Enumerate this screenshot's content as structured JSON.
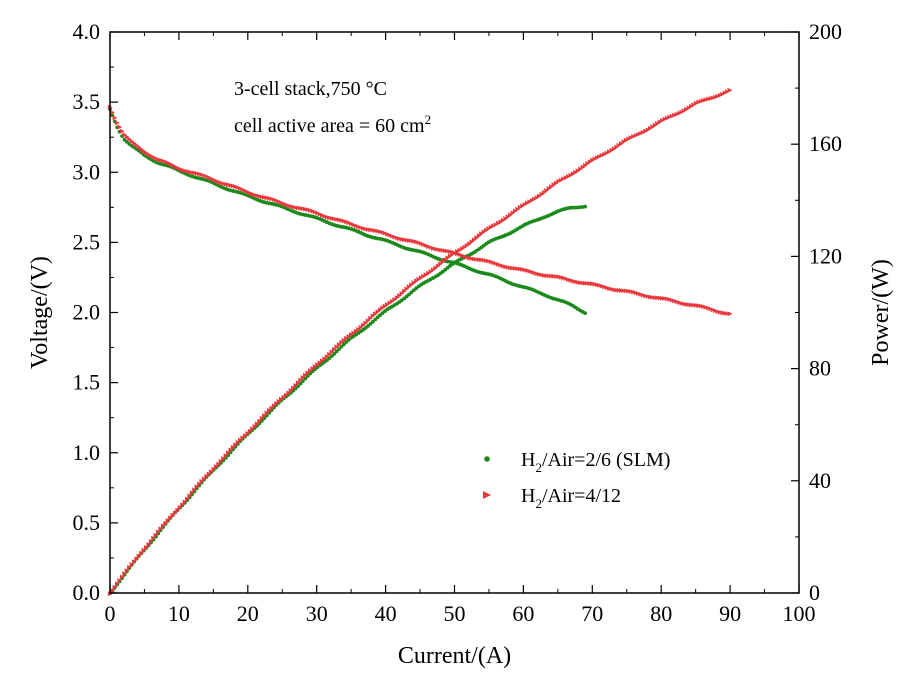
{
  "chart_data": {
    "type": "scatter",
    "xlabel": "Current/(A)",
    "ylabel_left": "Voltage/(V)",
    "ylabel_right": "Power/(W)",
    "xlim": [
      0,
      100
    ],
    "ylim_left": [
      0,
      4
    ],
    "ylim_right": [
      0,
      200
    ],
    "xticks": [
      "0",
      "10",
      "20",
      "30",
      "40",
      "50",
      "60",
      "70",
      "80",
      "90",
      "100"
    ],
    "yticks_left": [
      "0.0",
      "0.5",
      "1.0",
      "1.5",
      "2.0",
      "2.5",
      "3.0",
      "3.5",
      "4.0"
    ],
    "yticks_right": [
      "0",
      "40",
      "80",
      "120",
      "160",
      "200"
    ],
    "annotation": {
      "line1": "3-cell stack,750 °C",
      "line2_prefix": "cell active area = 60 cm",
      "line2_sup": "2"
    },
    "legend": [
      {
        "prefix": "H",
        "sub": "2",
        "suffix": "/Air=2/6 (SLM)",
        "color": "#1a8a1a",
        "marker": "circle"
      },
      {
        "prefix": "H",
        "sub": "2",
        "suffix": "/Air=4/12",
        "color": "#e8383d",
        "marker": "triangle-right"
      }
    ],
    "series": [
      {
        "color": "#1a8a1a",
        "marker": "circle",
        "axis": "left",
        "quantity": "voltage",
        "x": [
          0,
          1,
          2,
          3,
          5,
          7,
          10,
          15,
          20,
          25,
          30,
          35,
          40,
          45,
          50,
          55,
          60,
          63,
          65,
          67,
          69
        ],
        "y": [
          3.45,
          3.33,
          3.24,
          3.19,
          3.12,
          3.07,
          3.01,
          2.92,
          2.83,
          2.75,
          2.67,
          2.59,
          2.51,
          2.43,
          2.35,
          2.27,
          2.18,
          2.13,
          2.09,
          2.05,
          2.0
        ]
      },
      {
        "color": "#1a8a1a",
        "marker": "circle",
        "axis": "right",
        "quantity": "power",
        "x": [
          0,
          5,
          10,
          15,
          20,
          25,
          30,
          35,
          40,
          45,
          50,
          55,
          60,
          63,
          65,
          67,
          69
        ],
        "y": [
          0,
          15.5,
          30.1,
          43.8,
          56.6,
          68.8,
          80.1,
          90.7,
          100.4,
          109.4,
          117.5,
          124.9,
          130.8,
          134.2,
          135.9,
          137.4,
          138.0
        ]
      },
      {
        "color": "#e8383d",
        "marker": "triangle-right",
        "axis": "left",
        "quantity": "voltage",
        "x": [
          0,
          1,
          2,
          3,
          5,
          7,
          10,
          15,
          20,
          25,
          30,
          35,
          40,
          45,
          50,
          55,
          60,
          65,
          70,
          75,
          80,
          85,
          90
        ],
        "y": [
          3.47,
          3.36,
          3.27,
          3.22,
          3.15,
          3.09,
          3.03,
          2.95,
          2.86,
          2.78,
          2.71,
          2.63,
          2.56,
          2.49,
          2.42,
          2.36,
          2.3,
          2.25,
          2.2,
          2.15,
          2.1,
          2.05,
          1.99
        ]
      },
      {
        "color": "#e8383d",
        "marker": "triangle-right",
        "axis": "right",
        "quantity": "power",
        "x": [
          0,
          5,
          10,
          15,
          20,
          25,
          30,
          35,
          40,
          45,
          50,
          55,
          60,
          65,
          70,
          75,
          80,
          85,
          90
        ],
        "y": [
          0,
          15.8,
          30.3,
          44.3,
          57.2,
          69.5,
          81.3,
          92.1,
          102.4,
          112.1,
          121.0,
          129.8,
          138.0,
          146.3,
          154.0,
          161.3,
          168.0,
          174.3,
          179.1
        ]
      }
    ]
  }
}
